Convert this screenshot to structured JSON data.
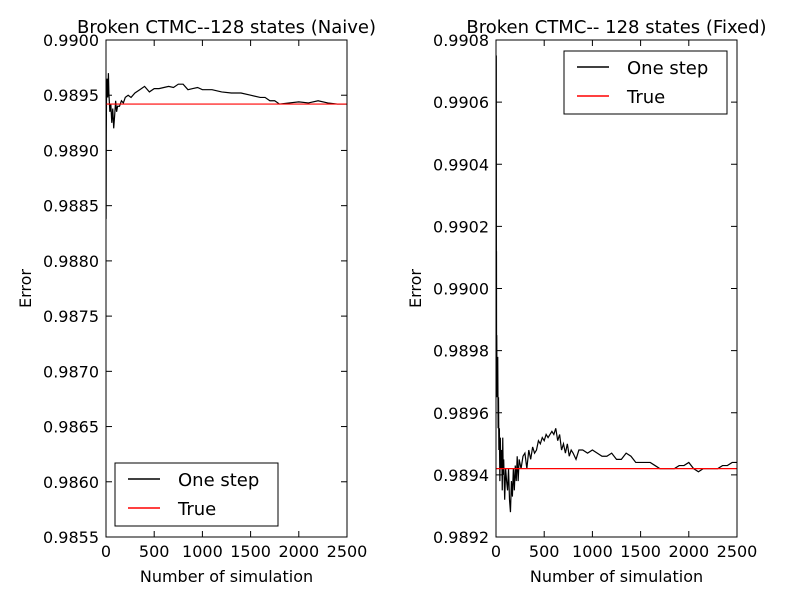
{
  "chart_data": [
    {
      "type": "line",
      "title": "Broken CTMC--128 states (Naive)",
      "xlabel": "Number of simulation",
      "ylabel": "Error",
      "xlim": [
        0,
        2500
      ],
      "ylim": [
        0.9855,
        0.99
      ],
      "xticks": [
        "0",
        "500",
        "1000",
        "1500",
        "2000",
        "2500"
      ],
      "yticks": [
        "0.9855",
        "0.9860",
        "0.9865",
        "0.9870",
        "0.9875",
        "0.9880",
        "0.9885",
        "0.9890",
        "0.9895",
        "0.9900"
      ],
      "legend_position": "lower-left",
      "series": [
        {
          "name": "One step",
          "color": "#000000",
          "x": [
            1,
            3,
            5,
            8,
            12,
            18,
            25,
            30,
            40,
            50,
            60,
            70,
            80,
            90,
            100,
            110,
            120,
            140,
            160,
            180,
            200,
            230,
            260,
            300,
            350,
            400,
            450,
            500,
            550,
            600,
            650,
            700,
            750,
            800,
            850,
            900,
            950,
            1000,
            1050,
            1100,
            1200,
            1300,
            1400,
            1500,
            1600,
            1650,
            1700,
            1750,
            1800,
            1900,
            2000,
            2100,
            2200,
            2300,
            2400,
            2500
          ],
          "values": [
            0.98838,
            0.98915,
            0.98945,
            0.98955,
            0.98965,
            0.98948,
            0.9897,
            0.98952,
            0.98935,
            0.98942,
            0.98925,
            0.98938,
            0.9892,
            0.98932,
            0.98945,
            0.98935,
            0.9894,
            0.9894,
            0.98945,
            0.98943,
            0.98948,
            0.9895,
            0.98948,
            0.98952,
            0.98955,
            0.98958,
            0.98953,
            0.98956,
            0.98956,
            0.98957,
            0.98958,
            0.98957,
            0.9896,
            0.9896,
            0.98955,
            0.98956,
            0.98957,
            0.98955,
            0.98955,
            0.98955,
            0.98953,
            0.98952,
            0.98952,
            0.9895,
            0.98948,
            0.98948,
            0.98945,
            0.98945,
            0.98942,
            0.98943,
            0.98944,
            0.98943,
            0.98945,
            0.98943,
            0.98942,
            0.98942
          ]
        },
        {
          "name": "True",
          "color": "#ff0000",
          "x": [
            0,
            2500
          ],
          "values": [
            0.98942,
            0.98942
          ]
        }
      ]
    },
    {
      "type": "line",
      "title": "Broken CTMC-- 128 states (Fixed)",
      "xlabel": "Number of simulation",
      "ylabel": "Error",
      "xlim": [
        0,
        2500
      ],
      "ylim": [
        0.9892,
        0.9908
      ],
      "xticks": [
        "0",
        "500",
        "1000",
        "1500",
        "2000",
        "2500"
      ],
      "yticks": [
        "0.9892",
        "0.9894",
        "0.9896",
        "0.9898",
        "0.9900",
        "0.9902",
        "0.9904",
        "0.9906",
        "0.9908"
      ],
      "legend_position": "top-right",
      "series": [
        {
          "name": "One step",
          "color": "#000000",
          "x": [
            1,
            2,
            3,
            4,
            5,
            6,
            8,
            10,
            12,
            15,
            18,
            22,
            26,
            30,
            35,
            40,
            45,
            50,
            55,
            60,
            65,
            70,
            75,
            80,
            90,
            100,
            110,
            120,
            130,
            140,
            150,
            160,
            170,
            180,
            190,
            200,
            210,
            220,
            230,
            240,
            260,
            280,
            300,
            320,
            340,
            360,
            380,
            400,
            420,
            440,
            460,
            480,
            500,
            520,
            540,
            560,
            580,
            600,
            620,
            640,
            660,
            680,
            700,
            720,
            740,
            760,
            780,
            800,
            830,
            860,
            900,
            950,
            1000,
            1050,
            1100,
            1150,
            1200,
            1250,
            1300,
            1350,
            1400,
            1450,
            1500,
            1550,
            1600,
            1650,
            1700,
            1750,
            1800,
            1850,
            1900,
            1950,
            2000,
            2050,
            2100,
            2150,
            2200,
            2250,
            2300,
            2350,
            2400,
            2450,
            2500
          ],
          "values": [
            0.99073,
            0.99025,
            0.99075,
            0.99,
            0.99012,
            0.98965,
            0.98985,
            0.9897,
            0.9897,
            0.98965,
            0.98978,
            0.98955,
            0.98965,
            0.98948,
            0.98955,
            0.98938,
            0.98952,
            0.98942,
            0.98947,
            0.98948,
            0.98935,
            0.98952,
            0.9894,
            0.98945,
            0.98932,
            0.98942,
            0.98938,
            0.98935,
            0.98942,
            0.98932,
            0.98928,
            0.98938,
            0.98933,
            0.98942,
            0.98935,
            0.98943,
            0.98938,
            0.98946,
            0.98938,
            0.98945,
            0.98942,
            0.98946,
            0.98947,
            0.98942,
            0.98948,
            0.98945,
            0.98949,
            0.98947,
            0.98948,
            0.98951,
            0.9895,
            0.98952,
            0.98951,
            0.98953,
            0.98952,
            0.98953,
            0.98954,
            0.98953,
            0.98955,
            0.98951,
            0.98953,
            0.98948,
            0.9895,
            0.98947,
            0.9895,
            0.98946,
            0.98948,
            0.98947,
            0.98945,
            0.98948,
            0.98948,
            0.98947,
            0.98948,
            0.98947,
            0.98946,
            0.98946,
            0.98947,
            0.98945,
            0.98945,
            0.98947,
            0.98946,
            0.98944,
            0.98944,
            0.98944,
            0.98944,
            0.98943,
            0.98942,
            0.98942,
            0.98942,
            0.98942,
            0.98943,
            0.98943,
            0.98944,
            0.98942,
            0.98941,
            0.98942,
            0.98942,
            0.98942,
            0.98942,
            0.98943,
            0.98943,
            0.98944,
            0.98944
          ]
        },
        {
          "name": "True",
          "color": "#ff0000",
          "x": [
            0,
            2500
          ],
          "values": [
            0.98942,
            0.98942
          ]
        }
      ]
    }
  ]
}
